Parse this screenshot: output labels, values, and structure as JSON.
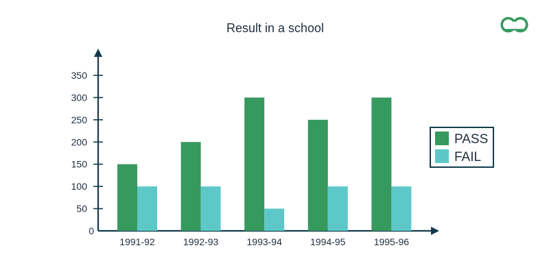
{
  "colors": {
    "pass": "#36995e",
    "fail": "#5ec8c9",
    "axis": "#133a4a",
    "logo": "#36995e"
  },
  "logo": {
    "icon": "gfg-logo-icon"
  },
  "chart_data": {
    "type": "bar",
    "title": "Result in a school",
    "xlabel": "",
    "ylabel": "",
    "categories": [
      "1991-92",
      "1992-93",
      "1993-94",
      "1994-95",
      "1995-96"
    ],
    "series": [
      {
        "name": "PASS",
        "values": [
          150,
          200,
          300,
          250,
          300
        ]
      },
      {
        "name": "FAIL",
        "values": [
          100,
          100,
          50,
          100,
          100
        ]
      }
    ],
    "ylim": [
      0,
      350
    ],
    "yticks": [
      0,
      50,
      100,
      150,
      200,
      250,
      300,
      350
    ],
    "grid": false,
    "legend": "right"
  }
}
